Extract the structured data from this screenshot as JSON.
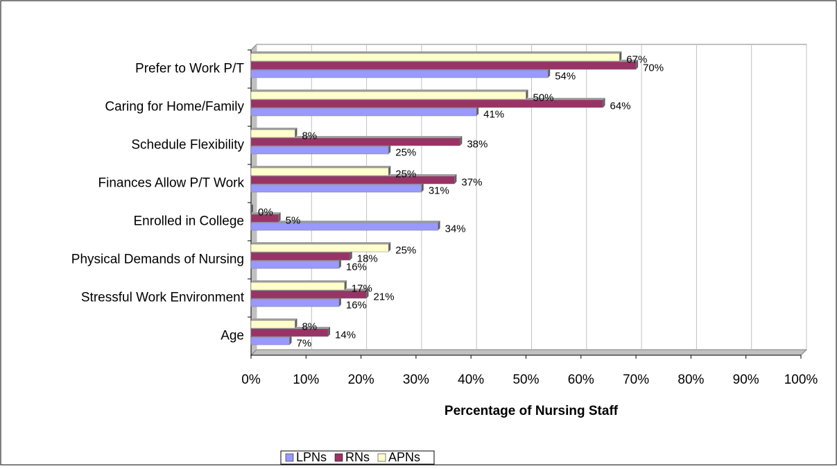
{
  "chart_data": {
    "type": "bar",
    "orientation": "horizontal",
    "x_label": "Percentage of Nursing Staff",
    "categories": [
      "Prefer to Work P/T",
      "Caring for Home/Family",
      "Schedule Flexibility",
      "Finances Allow P/T Work",
      "Enrolled in College",
      "Physical Demands of Nursing",
      "Stressful Work Environment",
      "Age"
    ],
    "series": [
      {
        "name": "LPNs",
        "color": "#9999ff",
        "values": [
          54,
          41,
          25,
          31,
          34,
          16,
          16,
          7
        ],
        "value_labels": [
          "54%",
          "41%",
          "25%",
          "31%",
          "34%",
          "16%",
          "16%",
          "7%"
        ]
      },
      {
        "name": "RNs",
        "color": "#993366",
        "values": [
          70,
          64,
          38,
          37,
          5,
          18,
          21,
          14
        ],
        "value_labels": [
          "70%",
          "64%",
          "38%",
          "37%",
          "5%",
          "18%",
          "21%",
          "14%"
        ]
      },
      {
        "name": "APNs",
        "color": "#ffffcc",
        "values": [
          67,
          50,
          8,
          25,
          0,
          25,
          17,
          8
        ],
        "value_labels": [
          "67%",
          "50%",
          "8%",
          "25%",
          "0%",
          "25%",
          "17%",
          "8%"
        ]
      }
    ],
    "xlim": [
      0,
      100
    ],
    "xticks": [
      {
        "value": 0,
        "label": "0%"
      },
      {
        "value": 10,
        "label": "10%"
      },
      {
        "value": 20,
        "label": "20%"
      },
      {
        "value": 30,
        "label": "30%"
      },
      {
        "value": 40,
        "label": "40%"
      },
      {
        "value": 50,
        "label": "50%"
      },
      {
        "value": 60,
        "label": "60%"
      },
      {
        "value": 70,
        "label": "70%"
      },
      {
        "value": 80,
        "label": "80%"
      },
      {
        "value": 90,
        "label": "90%"
      },
      {
        "value": 100,
        "label": "100%"
      }
    ],
    "grid": true,
    "legend": "bottom"
  }
}
